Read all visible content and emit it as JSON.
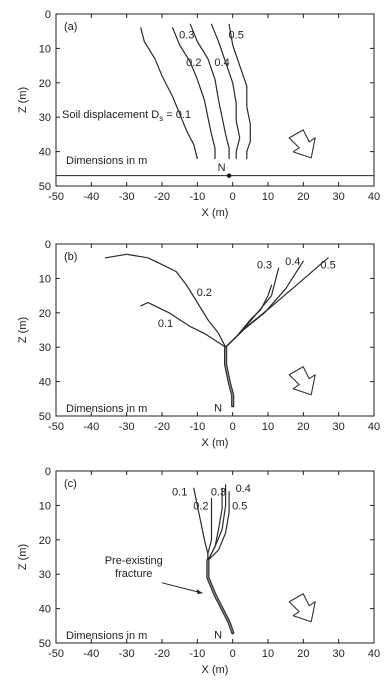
{
  "chart_data": [
    {
      "type": "line",
      "panel_label": "(a)",
      "xlabel": "X (m)",
      "ylabel": "Z (m)",
      "xlim": [
        -50,
        40
      ],
      "ylim": [
        0,
        50
      ],
      "y_inverted": true,
      "x_ticks": [
        -50,
        -40,
        -30,
        -20,
        -10,
        0,
        10,
        20,
        30,
        40
      ],
      "y_ticks": [
        0,
        10,
        20,
        30,
        40,
        50
      ],
      "note": "Dimensions in m",
      "point_label": "N",
      "point": {
        "x": -1,
        "y": 47
      },
      "ground_line_z": 47,
      "legend_text_prefix": "Soil displacement D",
      "legend_subscript": "s",
      "legend_text_suffix": " = 0.1",
      "series": [
        {
          "name": "0.1",
          "x": [
            -26,
            -25,
            -22,
            -20,
            -17,
            -15,
            -13,
            -11,
            -10
          ],
          "y": [
            4,
            8,
            13,
            18,
            24,
            29,
            34,
            38,
            42
          ]
        },
        {
          "name": "0.2",
          "x": [
            -17,
            -15,
            -12,
            -10,
            -8,
            -7,
            -6,
            -5,
            -5
          ],
          "y": [
            4,
            9,
            14,
            19,
            25,
            30,
            35,
            39,
            42
          ]
        },
        {
          "name": "0.3",
          "x": [
            -12,
            -10,
            -7,
            -5,
            -4,
            -3,
            -2,
            -1,
            -1
          ],
          "y": [
            3,
            8,
            13,
            19,
            25,
            30,
            35,
            39,
            42
          ]
        },
        {
          "name": "0.4",
          "x": [
            -6,
            -4,
            -2,
            0,
            1,
            1,
            2,
            1,
            1
          ],
          "y": [
            3,
            8,
            14,
            20,
            26,
            31,
            36,
            40,
            42
          ]
        },
        {
          "name": "0.5",
          "x": [
            -1,
            0,
            2,
            4,
            4,
            5,
            5,
            4,
            4
          ],
          "y": [
            3,
            9,
            15,
            21,
            27,
            32,
            37,
            40,
            42
          ]
        }
      ],
      "series_labels": [
        {
          "text": "0.3",
          "x": -13,
          "y": 6
        },
        {
          "text": "0.5",
          "x": 1,
          "y": 6
        },
        {
          "text": "0.2",
          "x": -11,
          "y": 14
        },
        {
          "text": "0.4",
          "x": -3,
          "y": 14
        }
      ]
    },
    {
      "type": "line",
      "panel_label": "(b)",
      "xlabel": "X (m)",
      "ylabel": "Z (m)",
      "xlim": [
        -50,
        40
      ],
      "ylim": [
        0,
        50
      ],
      "y_inverted": true,
      "x_ticks": [
        -50,
        -40,
        -30,
        -20,
        -10,
        0,
        10,
        20,
        30,
        40
      ],
      "y_ticks": [
        0,
        10,
        20,
        30,
        40,
        50
      ],
      "note": "Dimensions in m",
      "point_label": "N",
      "series": [
        {
          "name": "0.1",
          "x": [
            -36,
            -30,
            -24,
            -20,
            -16,
            -13,
            -10,
            -7,
            -4,
            -2
          ],
          "y": [
            4,
            3,
            4,
            6,
            8,
            12,
            17,
            22,
            26,
            30
          ]
        },
        {
          "name": "0.1",
          "x": [
            -2,
            -5,
            -8,
            -12,
            -15,
            -18,
            -22,
            -24,
            -26
          ],
          "y": [
            30,
            28,
            26,
            24,
            22,
            20,
            18,
            17,
            18
          ]
        },
        {
          "name": "0.2",
          "x": [
            -2,
            1,
            5,
            8,
            10,
            11
          ],
          "y": [
            30,
            27,
            22,
            19,
            15,
            12
          ]
        },
        {
          "name": "0.3",
          "x": [
            -2,
            2,
            7,
            11,
            13
          ],
          "y": [
            30,
            26,
            20,
            15,
            7
          ]
        },
        {
          "name": "0.4",
          "x": [
            -2,
            3,
            9,
            15,
            20
          ],
          "y": [
            30,
            25,
            20,
            13,
            5
          ]
        },
        {
          "name": "0.5",
          "x": [
            -2,
            4,
            10,
            18,
            27
          ],
          "y": [
            30,
            24,
            19,
            12,
            4
          ]
        },
        {
          "name": "stem",
          "x": [
            -2,
            -2,
            -1,
            0,
            0
          ],
          "y": [
            30,
            35,
            40,
            44,
            47
          ]
        }
      ],
      "series_labels": [
        {
          "text": "0.2",
          "x": -8,
          "y": 14
        },
        {
          "text": "0.1",
          "x": -19,
          "y": 23
        },
        {
          "text": "0.3",
          "x": 9,
          "y": 6
        },
        {
          "text": "0.4",
          "x": 17,
          "y": 5
        },
        {
          "text": "0.5",
          "x": 27,
          "y": 6
        }
      ]
    },
    {
      "type": "line",
      "panel_label": "(c)",
      "xlabel": "X (m)",
      "ylabel": "Z (m)",
      "xlim": [
        -50,
        40
      ],
      "ylim": [
        0,
        50
      ],
      "y_inverted": true,
      "x_ticks": [
        -50,
        -40,
        -30,
        -20,
        -10,
        0,
        10,
        20,
        30,
        40
      ],
      "y_ticks": [
        0,
        10,
        20,
        30,
        40,
        50
      ],
      "note": "Dimensions in m",
      "point_label": "N",
      "annotation": "Pre-existing fracture",
      "annotation_lines": [
        "Pre-existing",
        "fracture"
      ],
      "series": [
        {
          "name": "0.1",
          "x": [
            -11,
            -10,
            -9,
            -8,
            -7,
            -7
          ],
          "y": [
            5,
            10,
            15,
            20,
            24,
            26
          ]
        },
        {
          "name": "0.2",
          "x": [
            -6,
            -6,
            -6,
            -7,
            -7
          ],
          "y": [
            8,
            14,
            20,
            24,
            26
          ]
        },
        {
          "name": "0.3",
          "x": [
            -3,
            -3,
            -4,
            -5,
            -7
          ],
          "y": [
            5,
            11,
            17,
            22,
            26
          ]
        },
        {
          "name": "0.4",
          "x": [
            -2,
            -2,
            -3,
            -5,
            -7
          ],
          "y": [
            4,
            10,
            17,
            22,
            26
          ]
        },
        {
          "name": "0.5",
          "x": [
            -1,
            -1,
            -2,
            -4,
            -7
          ],
          "y": [
            6,
            12,
            18,
            23,
            26
          ]
        },
        {
          "name": "stem",
          "x": [
            -7,
            -7,
            -5,
            -3,
            -1,
            0
          ],
          "y": [
            26,
            31,
            36,
            40,
            44,
            47
          ]
        }
      ],
      "series_labels": [
        {
          "text": "0.1",
          "x": -15,
          "y": 6
        },
        {
          "text": "0.3",
          "x": -4,
          "y": 6
        },
        {
          "text": "0.4",
          "x": 3,
          "y": 5
        },
        {
          "text": "0.2",
          "x": -9,
          "y": 10
        },
        {
          "text": "0.5",
          "x": 2,
          "y": 10
        }
      ]
    }
  ]
}
